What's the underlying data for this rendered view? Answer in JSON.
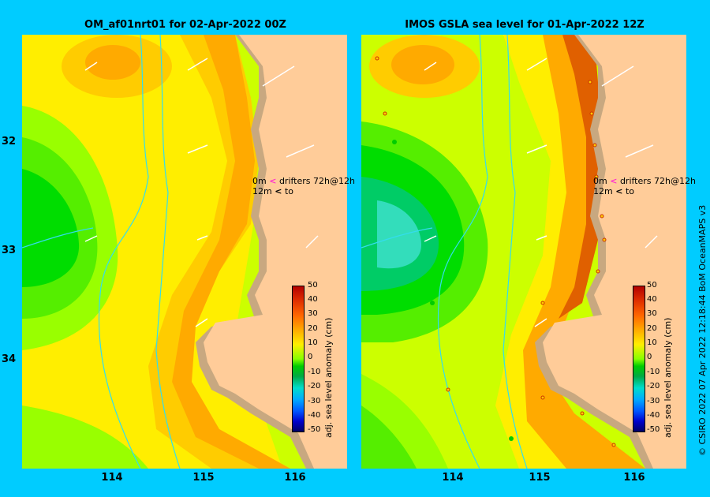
{
  "panels": {
    "left": {
      "title": "OM_af01nrt01 for 02-Apr-2022 00Z"
    },
    "right": {
      "title": "IMOS GSLA sea level  for 01-Apr-2022 12Z"
    }
  },
  "axes": {
    "y_ticks": [
      "32",
      "33",
      "34"
    ],
    "x_ticks": [
      "114",
      "115",
      "116"
    ]
  },
  "legend": {
    "row1_prefix": "0m",
    "row1_text": "drifters 72h@12h",
    "row2_prefix": "12m",
    "row2_text": "to",
    "marker_pink": "<",
    "marker_black": "<"
  },
  "colorbar": {
    "title": "adj. sea level anomaly (cm)",
    "labels": [
      "50",
      "40",
      "30",
      "20",
      "10",
      "0",
      "-10",
      "-20",
      "-30",
      "-40",
      "-50"
    ]
  },
  "credit": "© CSIRO 2022   07 Apr 2022 12:18:44 BoM OceanMAPS v3",
  "colors": {
    "background": "#00ccff",
    "land": "#ffcc99",
    "coast_shelf": "#c8a880",
    "bathymetry_line": "#33ddee"
  }
}
